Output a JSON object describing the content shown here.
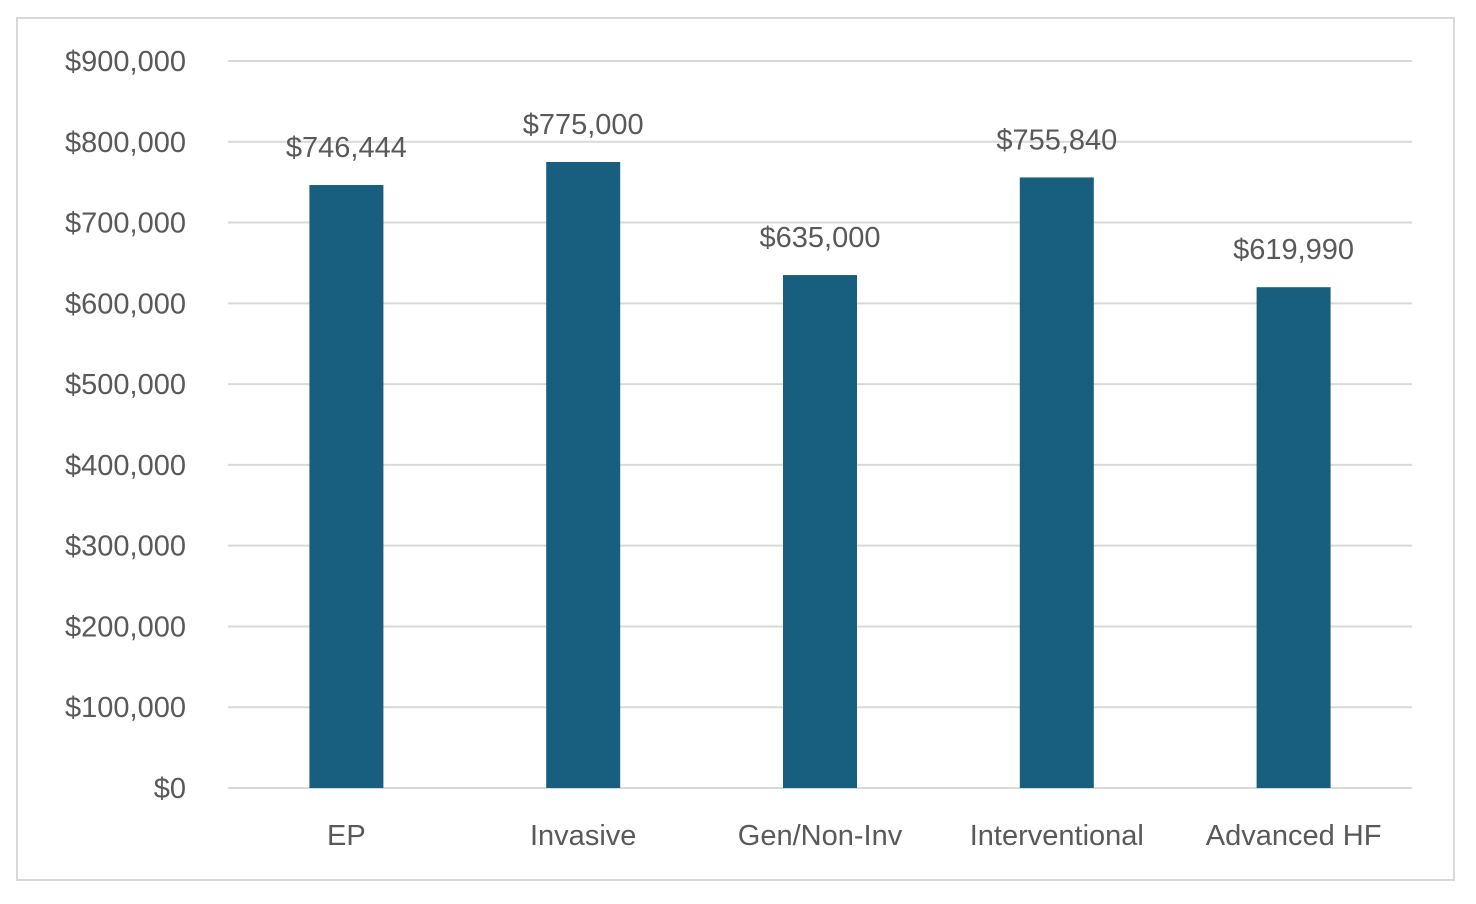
{
  "chart_data": {
    "type": "bar",
    "title": "",
    "xlabel": "",
    "ylabel": "",
    "categories": [
      "EP",
      "Invasive",
      "Gen/Non-Inv",
      "Interventional",
      "Advanced HF"
    ],
    "values": [
      746444,
      775000,
      635000,
      755840,
      619990
    ],
    "data_labels": [
      "$746,444",
      "$775,000",
      "$635,000",
      "$755,840",
      "$619,990"
    ],
    "ylim": [
      0,
      900000
    ],
    "yticks": [
      0,
      100000,
      200000,
      300000,
      400000,
      500000,
      600000,
      700000,
      800000,
      900000
    ],
    "ytick_labels": [
      "$0",
      "$100,000",
      "$200,000",
      "$300,000",
      "$400,000",
      "$500,000",
      "$600,000",
      "$700,000",
      "$800,000",
      "$900,000"
    ],
    "grid": true,
    "legend": "none",
    "colors": {
      "bar": "#175e7f",
      "grid": "#d9d9d9",
      "text": "#595959",
      "border": "#d9d9d9"
    }
  }
}
